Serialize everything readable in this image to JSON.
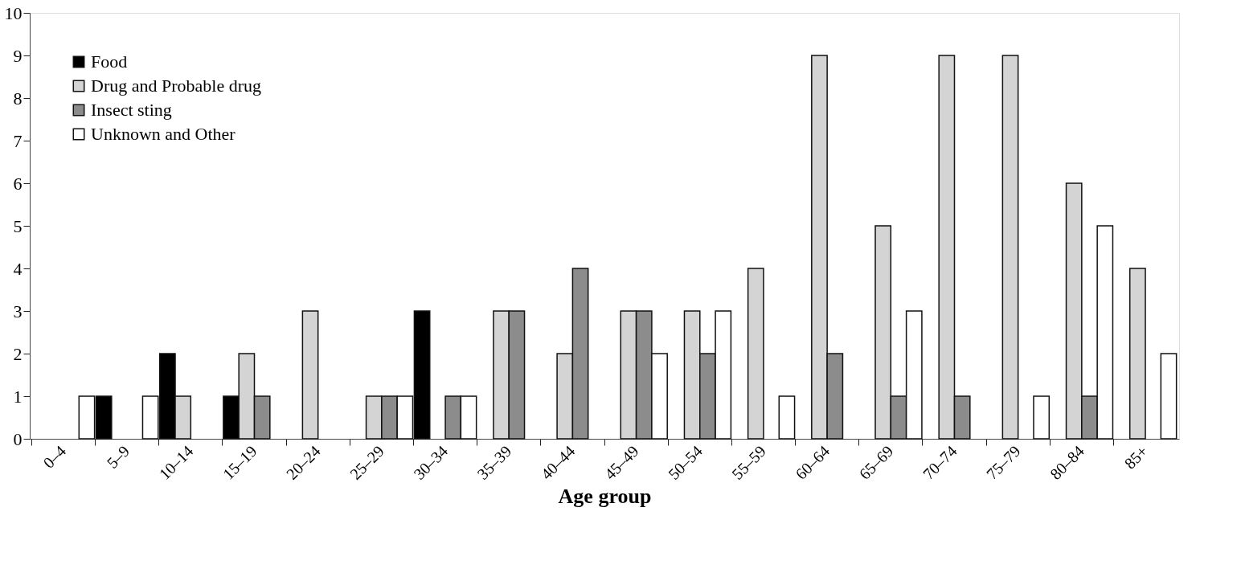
{
  "chart_data": {
    "type": "bar",
    "xlabel": "Age group",
    "categories": [
      "0–4",
      "5–9",
      "10–14",
      "15–19",
      "20–24",
      "25–29",
      "30–34",
      "35–39",
      "40–44",
      "45–49",
      "50–54",
      "55–59",
      "60–64",
      "65–69",
      "70–74",
      "75–79",
      "80–84",
      "85+"
    ],
    "series": [
      {
        "name": "Food",
        "color": "#000000",
        "values": [
          0,
          1,
          2,
          1,
          0,
          0,
          3,
          0,
          0,
          0,
          0,
          0,
          0,
          0,
          0,
          0,
          0,
          0
        ]
      },
      {
        "name": "Drug and Probable drug",
        "color": "#d4d4d4",
        "values": [
          0,
          0,
          1,
          2,
          3,
          1,
          0,
          3,
          2,
          3,
          3,
          4,
          9,
          5,
          9,
          9,
          6,
          4
        ]
      },
      {
        "name": "Insect sting",
        "color": "#8c8c8c",
        "values": [
          0,
          0,
          0,
          1,
          0,
          1,
          1,
          3,
          4,
          3,
          2,
          0,
          2,
          1,
          1,
          0,
          1,
          0
        ]
      },
      {
        "name": "Unknown and Other",
        "color": "#ffffff",
        "values": [
          1,
          1,
          0,
          0,
          0,
          1,
          1,
          0,
          0,
          2,
          3,
          1,
          0,
          3,
          0,
          1,
          5,
          2
        ]
      }
    ],
    "ylim": [
      0,
      10
    ],
    "yticks": [
      0,
      1,
      2,
      3,
      4,
      5,
      6,
      7,
      8,
      9,
      10
    ],
    "legend": "top left",
    "grid": false
  }
}
